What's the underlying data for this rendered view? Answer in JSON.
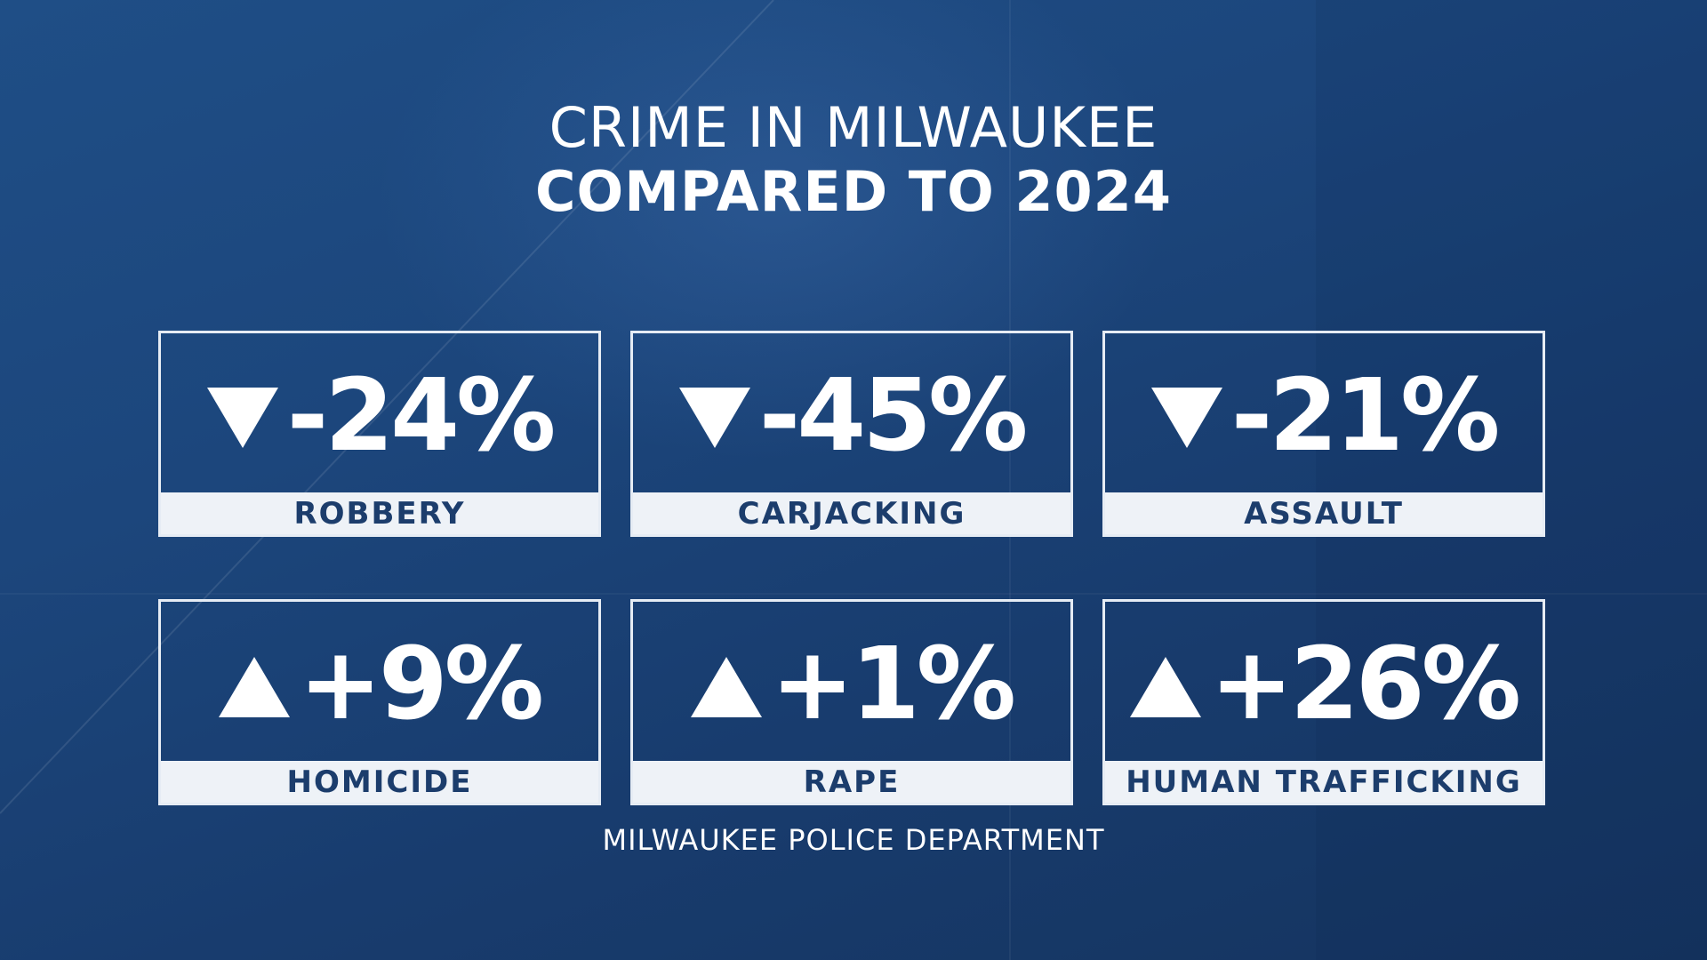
{
  "title": {
    "line1": "CRIME IN MILWAUKEE",
    "line2": "COMPARED TO 2024"
  },
  "stats": [
    {
      "value": "-24%",
      "label": "ROBBERY",
      "direction": "down"
    },
    {
      "value": "-45%",
      "label": "CARJACKING",
      "direction": "down"
    },
    {
      "value": "-21%",
      "label": "ASSAULT",
      "direction": "down"
    },
    {
      "value": "+9%",
      "label": "HOMICIDE",
      "direction": "up"
    },
    {
      "value": "+1%",
      "label": "RAPE",
      "direction": "up"
    },
    {
      "value": "+26%",
      "label": "HUMAN TRAFFICKING",
      "direction": "up"
    }
  ],
  "source": "MILWAUKEE POLICE DEPARTMENT",
  "colors": {
    "background": "#1c467c",
    "card_border": "#e6ecf4",
    "label_background": "#eef2f7",
    "label_text": "#1c3d6c",
    "text": "#ffffff"
  }
}
